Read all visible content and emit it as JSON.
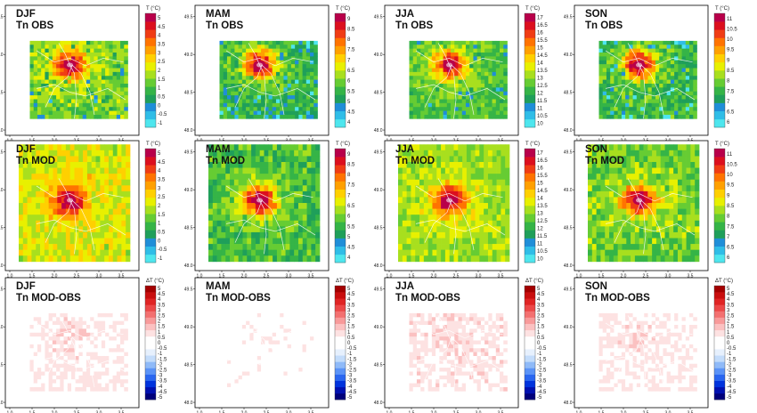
{
  "figure": {
    "columns": [
      "DJF",
      "MAM",
      "JJA",
      "SON"
    ],
    "rows": [
      "Tn OBS",
      "Tn MOD",
      "Tn MOD-OBS"
    ]
  },
  "chart_data": {
    "type": "heatmap",
    "x_ticks": [
      "1.0",
      "1.5",
      "2.0",
      "2.5",
      "3.0",
      "3.5"
    ],
    "y_ticks": [
      "48.0",
      "48.5",
      "49.0",
      "49.5"
    ],
    "xlim": [
      0.9,
      3.9
    ],
    "ylim": [
      47.93,
      49.65
    ],
    "obs_domain": {
      "lon": [
        1.45,
        3.65
      ],
      "lat": [
        48.15,
        49.18
      ]
    },
    "mod_domain": {
      "lon": [
        1.2,
        3.7
      ],
      "lat": [
        48.05,
        49.6
      ]
    },
    "hotspot": {
      "lon": 2.35,
      "lat": 48.86
    },
    "colors": {
      "temp_scale": [
        "#4ee6ee",
        "#2fbde7",
        "#1f8ed8",
        "#1f9f5a",
        "#35b447",
        "#66cc33",
        "#a8df1e",
        "#e8f000",
        "#ffd000",
        "#ffa000",
        "#ff7300",
        "#f03c14",
        "#dc0f1e",
        "#b8004a"
      ],
      "diff_scale": [
        "#00007a",
        "#0010b0",
        "#0033dd",
        "#2a66f0",
        "#5b93f7",
        "#8fbaf8",
        "#c3dcfb",
        "#e6f0fd",
        "#ffffff",
        "#ffffff",
        "#fde2e2",
        "#fbc1c1",
        "#f89a9a",
        "#f37070",
        "#ec4848",
        "#e02424",
        "#c90e0e",
        "#a30000"
      ]
    },
    "panels": [
      {
        "season": "DJF",
        "row": "obs",
        "title_season": "DJF",
        "title_var": "Tn OBS",
        "cb_label": "T (°C)",
        "levels": [
          "5",
          "4.5",
          "4",
          "3.5",
          "3",
          "2.5",
          "2",
          "1.5",
          "1",
          "0.5",
          "0",
          "-0.5",
          "-1"
        ],
        "field": {
          "rural": 1.5,
          "center": 5.0
        }
      },
      {
        "season": "MAM",
        "row": "obs",
        "title_season": "MAM",
        "title_var": "Tn OBS",
        "cb_label": "T (°C)",
        "levels": [
          "9",
          "8.5",
          "8",
          "7.5",
          "7",
          "6.5",
          "6",
          "5.5",
          "5",
          "4.5",
          "4"
        ],
        "field": {
          "rural": 5.5,
          "center": 9.0
        }
      },
      {
        "season": "JJA",
        "row": "obs",
        "title_season": "JJA",
        "title_var": "Tn OBS",
        "cb_label": "T (°C)",
        "levels": [
          "17",
          "16.5",
          "16",
          "15.5",
          "15",
          "14.5",
          "14",
          "13.5",
          "13",
          "12.5",
          "12",
          "11.5",
          "11",
          "10.5",
          "10"
        ],
        "field": {
          "rural": 12.5,
          "center": 17.0
        }
      },
      {
        "season": "SON",
        "row": "obs",
        "title_season": "SON",
        "title_var": "Tn OBS",
        "cb_label": "T (°C)",
        "levels": [
          "11",
          "10.5",
          "10",
          "9.5",
          "9",
          "8.5",
          "8",
          "7.5",
          "7",
          "6.5",
          "6"
        ],
        "field": {
          "rural": 7.6,
          "center": 11.0
        }
      },
      {
        "season": "DJF",
        "row": "mod",
        "title_season": "DJF",
        "title_var": "Tn MOD",
        "cb_label": "T (°C)",
        "levels": [
          "5",
          "4.5",
          "4",
          "3.5",
          "3",
          "2.5",
          "2",
          "1.5",
          "1",
          "0.5",
          "0",
          "-0.5",
          "-1"
        ],
        "field": {
          "rural": 2.1,
          "center": 5.0
        }
      },
      {
        "season": "MAM",
        "row": "mod",
        "title_season": "MAM",
        "title_var": "Tn MOD",
        "cb_label": "T (°C)",
        "levels": [
          "9",
          "8.5",
          "8",
          "7.5",
          "7",
          "6.5",
          "6",
          "5.5",
          "5",
          "4.5",
          "4"
        ],
        "field": {
          "rural": 5.7,
          "center": 9.0
        }
      },
      {
        "season": "JJA",
        "row": "mod",
        "title_season": "JJA",
        "title_var": "Tn MOD",
        "cb_label": "T (°C)",
        "levels": [
          "17",
          "16.5",
          "16",
          "15.5",
          "15",
          "14.5",
          "14",
          "13.5",
          "13",
          "12.5",
          "12",
          "11.5",
          "11",
          "10.5",
          "10"
        ],
        "field": {
          "rural": 13.2,
          "center": 17.0
        }
      },
      {
        "season": "SON",
        "row": "mod",
        "title_season": "SON",
        "title_var": "Tn MOD",
        "cb_label": "T (°C)",
        "levels": [
          "11",
          "10.5",
          "10",
          "9.5",
          "9",
          "8.5",
          "8",
          "7.5",
          "7",
          "6.5",
          "6"
        ],
        "field": {
          "rural": 8.0,
          "center": 11.0
        }
      },
      {
        "season": "DJF",
        "row": "diff",
        "title_season": "DJF",
        "title_var": "Tn MOD-OBS",
        "cb_label": "ΔT (°C)",
        "levels": [
          "5",
          "4.5",
          "4",
          "3.5",
          "3",
          "2.5",
          "2",
          "1.5",
          "1",
          "0.5",
          "0",
          "-0.5",
          "-1",
          "-1.5",
          "-2",
          "-2.5",
          "-3",
          "-3.5",
          "-4",
          "-4.5",
          "-5"
        ],
        "field": {
          "mean": 0.6
        }
      },
      {
        "season": "MAM",
        "row": "diff",
        "title_season": "MAM",
        "title_var": "Tn MOD-OBS",
        "cb_label": "ΔT (°C)",
        "levels": [
          "5",
          "4.5",
          "4",
          "3.5",
          "3",
          "2.5",
          "2",
          "1.5",
          "1",
          "0.5",
          "0",
          "-0.5",
          "-1",
          "-1.5",
          "-2",
          "-2.5",
          "-3",
          "-3.5",
          "-4",
          "-4.5",
          "-5"
        ],
        "field": {
          "mean": 0.1
        }
      },
      {
        "season": "JJA",
        "row": "diff",
        "title_season": "JJA",
        "title_var": "Tn MOD-OBS",
        "cb_label": "ΔT (°C)",
        "levels": [
          "5",
          "4.5",
          "4",
          "3.5",
          "3",
          "2.5",
          "2",
          "1.5",
          "1",
          "0.5",
          "0",
          "-0.5",
          "-1",
          "-1.5",
          "-2",
          "-2.5",
          "-3",
          "-3.5",
          "-4",
          "-4.5",
          "-5"
        ],
        "field": {
          "mean": 0.7
        }
      },
      {
        "season": "SON",
        "row": "diff",
        "title_season": "SON",
        "title_var": "Tn MOD-OBS",
        "cb_label": "ΔT (°C)",
        "levels": [
          "5",
          "4.5",
          "4",
          "3.5",
          "3",
          "2.5",
          "2",
          "1.5",
          "1",
          "0.5",
          "0",
          "-0.5",
          "-1",
          "-1.5",
          "-2",
          "-2.5",
          "-3",
          "-3.5",
          "-4",
          "-4.5",
          "-5"
        ],
        "field": {
          "mean": 0.55
        }
      }
    ]
  }
}
